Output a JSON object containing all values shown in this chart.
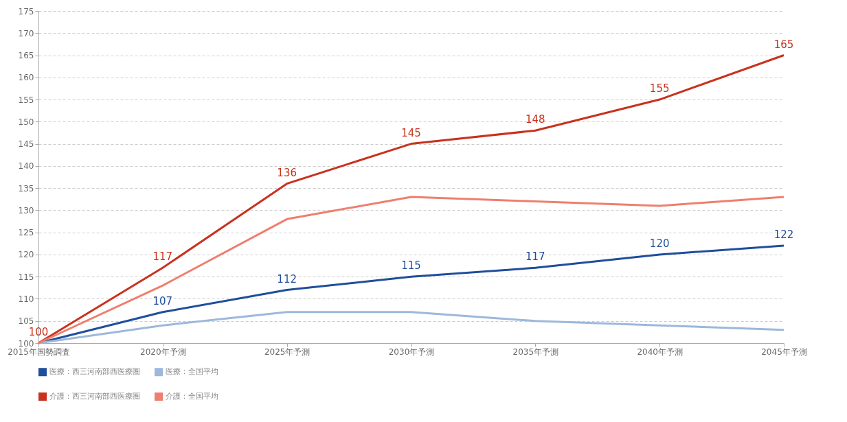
{
  "chart_data": {
    "type": "line",
    "categories": [
      "2015年国勢調査",
      "2020年予測",
      "2025年予測",
      "2030年予測",
      "2035年予測",
      "2040年予測",
      "2045年予測"
    ],
    "series": [
      {
        "name": "医療：西三河南部西医療圏",
        "color": "#1f4e9c",
        "values": [
          100,
          107,
          112,
          115,
          117,
          120,
          122
        ],
        "value_labels": [
          null,
          "107",
          "112",
          "115",
          "117",
          "120",
          "122"
        ]
      },
      {
        "name": "医療：全国平均",
        "color": "#9db8dc",
        "values": [
          100,
          104,
          107,
          107,
          105,
          104,
          103
        ]
      },
      {
        "name": "介護：西三河南部西医療圏",
        "color": "#c8321e",
        "values": [
          100,
          117,
          136,
          145,
          148,
          155,
          165
        ],
        "value_labels": [
          "100",
          "117",
          "136",
          "145",
          "148",
          "155",
          "165"
        ]
      },
      {
        "name": "介護：全国平均",
        "color": "#ee7f6e",
        "values": [
          100,
          113,
          128,
          133,
          132,
          131,
          133
        ]
      }
    ],
    "ylim": [
      100,
      175
    ],
    "yticks": [
      100,
      105,
      110,
      115,
      120,
      125,
      130,
      135,
      140,
      145,
      150,
      155,
      160,
      165,
      170,
      175
    ],
    "grid": "y",
    "legend": "bottom",
    "marker": "none",
    "line_style": "solid"
  }
}
